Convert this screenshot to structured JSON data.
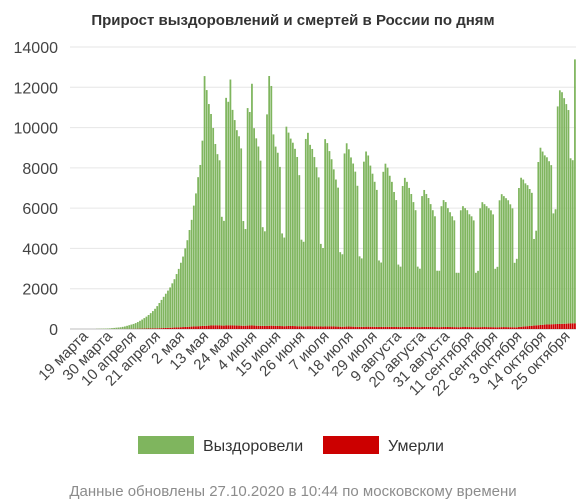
{
  "chart_data": {
    "type": "bar",
    "stacked": true,
    "title": "Прирост выздоровлений и смертей в России по дням",
    "ylim": [
      0,
      14000
    ],
    "yticks": [
      0,
      2000,
      4000,
      6000,
      8000,
      10000,
      12000,
      14000
    ],
    "grid": true,
    "legend_position": "bottom",
    "x_tick_labels": [
      "19 марта",
      "30 марта",
      "10 апреля",
      "21 апреля",
      "2 мая",
      "13 мая",
      "24 мая",
      "4 июня",
      "15 июня",
      "26 июня",
      "7 июля",
      "18 июля",
      "29 июля",
      "9 августа",
      "20 августа",
      "31 августа",
      "11 сентября",
      "22 сентября",
      "3 октября",
      "14 октября",
      "25 октября"
    ],
    "x_start_date": "19 марта",
    "x_end_date": "27 октября",
    "series": [
      {
        "name": "Выздоровели",
        "color": "#7fb55e",
        "values": [
          0,
          0,
          0,
          0,
          0,
          0,
          0,
          0,
          0,
          0,
          0,
          0,
          10,
          12,
          15,
          18,
          20,
          25,
          30,
          40,
          50,
          60,
          70,
          80,
          100,
          120,
          150,
          180,
          210,
          240,
          280,
          330,
          390,
          450,
          520,
          590,
          670,
          760,
          860,
          970,
          1100,
          1250,
          1400,
          1550,
          1700,
          1850,
          2000,
          2200,
          2400,
          2650,
          2900,
          3200,
          3500,
          3900,
          4300,
          4800,
          5300,
          6000,
          6600,
          7400,
          8000,
          9200,
          12400,
          11700,
          11000,
          10500,
          9800,
          9000,
          8500,
          8200,
          5400,
          5200,
          11300,
          11100,
          12200,
          10700,
          10200,
          9700,
          9400,
          8800,
          5200,
          4800,
          10800,
          10600,
          12000,
          9800,
          9300,
          8900,
          8200,
          4900,
          4700,
          10500,
          12400,
          11900,
          9500,
          8900,
          8600,
          7900,
          4600,
          4400,
          9900,
          9600,
          9300,
          9100,
          8800,
          8400,
          7500,
          4300,
          4200,
          9300,
          9600,
          9000,
          8800,
          8400,
          7900,
          7400,
          4100,
          3900,
          9300,
          9100,
          8700,
          8300,
          7800,
          7300,
          6900,
          3700,
          3600,
          8600,
          9100,
          8800,
          8400,
          8100,
          7700,
          7000,
          3500,
          3400,
          8200,
          8700,
          8500,
          8000,
          7600,
          7200,
          6800,
          3300,
          3200,
          7700,
          8100,
          7900,
          7500,
          7200,
          6700,
          6300,
          3100,
          3000,
          7000,
          7400,
          7200,
          6900,
          6600,
          6200,
          5800,
          3000,
          2900,
          6500,
          6800,
          6600,
          6400,
          6100,
          5800,
          5500,
          2800,
          2800,
          6000,
          6300,
          6200,
          5900,
          5700,
          5500,
          5300,
          2700,
          2700,
          5800,
          6000,
          5900,
          5800,
          5600,
          5500,
          5300,
          2700,
          2800,
          5900,
          6200,
          6100,
          6000,
          5900,
          5800,
          5600,
          2900,
          3000,
          6300,
          6600,
          6500,
          6400,
          6300,
          6100,
          5900,
          3200,
          3400,
          6900,
          7400,
          7300,
          7100,
          7000,
          6800,
          6600,
          4300,
          4700,
          8100,
          8800,
          8600,
          8400,
          8300,
          8100,
          7900,
          5500,
          5700,
          10800,
          11600,
          11500,
          11200,
          10900,
          10600,
          8200,
          8100,
          13100
        ],
        "note": "Daily values (one per day, 19 марта – 27 октября), estimated from the chart"
      },
      {
        "name": "Умерли",
        "color": "#cc0000",
        "values": [
          0,
          0,
          0,
          0,
          0,
          0,
          0,
          0,
          0,
          0,
          0,
          0,
          1,
          1,
          1,
          1,
          1,
          2,
          2,
          3,
          3,
          4,
          4,
          5,
          6,
          7,
          8,
          9,
          10,
          11,
          13,
          15,
          17,
          19,
          21,
          23,
          25,
          28,
          30,
          33,
          36,
          40,
          44,
          48,
          52,
          57,
          62,
          67,
          72,
          78,
          84,
          90,
          96,
          102,
          108,
          114,
          120,
          126,
          132,
          138,
          144,
          150,
          156,
          162,
          168,
          174,
          180,
          185,
          180,
          175,
          170,
          168,
          175,
          180,
          185,
          178,
          172,
          170,
          168,
          165,
          160,
          162,
          168,
          172,
          175,
          170,
          165,
          160,
          158,
          155,
          150,
          155,
          160,
          165,
          160,
          155,
          150,
          148,
          145,
          140,
          145,
          150,
          152,
          148,
          145,
          140,
          138,
          135,
          130,
          135,
          140,
          142,
          138,
          135,
          130,
          128,
          125,
          120,
          125,
          130,
          132,
          128,
          125,
          120,
          118,
          115,
          110,
          115,
          120,
          122,
          118,
          115,
          112,
          110,
          108,
          105,
          108,
          112,
          115,
          112,
          110,
          108,
          105,
          102,
          100,
          104,
          108,
          110,
          108,
          105,
          102,
          100,
          98,
          96,
          100,
          104,
          106,
          104,
          102,
          100,
          98,
          96,
          94,
          98,
          102,
          104,
          102,
          100,
          98,
          96,
          94,
          92,
          96,
          100,
          102,
          100,
          98,
          96,
          94,
          92,
          90,
          94,
          98,
          100,
          98,
          96,
          94,
          92,
          90,
          88,
          92,
          96,
          98,
          96,
          94,
          92,
          90,
          88,
          86,
          90,
          94,
          96,
          94,
          92,
          90,
          88,
          86,
          84,
          100,
          110,
          120,
          130,
          140,
          150,
          160,
          170,
          180,
          190,
          200,
          210,
          220,
          225,
          230,
          235,
          240,
          245,
          250,
          250,
          255,
          260,
          265,
          270,
          275,
          280,
          285,
          290,
          300,
          305
        ]
      }
    ]
  },
  "legend": {
    "recovered_label": "Выздоровели",
    "deaths_label": "Умерли"
  },
  "footnote": "Данные обновлены 27.10.2020 в 10:44 по московскому времени"
}
